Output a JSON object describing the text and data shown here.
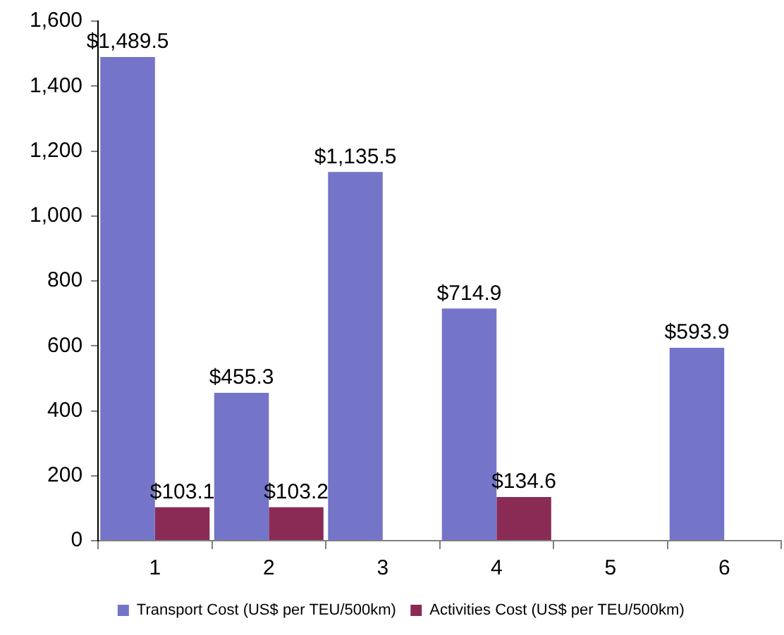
{
  "chart_data": {
    "type": "bar",
    "categories": [
      "1",
      "2",
      "3",
      "4",
      "5",
      "6"
    ],
    "series": [
      {
        "name": "Transport Cost (US$ per TEU/500km)",
        "color": "#7474c8",
        "values": [
          1489.5,
          455.3,
          1135.5,
          714.9,
          null,
          593.9
        ],
        "value_labels": [
          "$1,489.5",
          "$455.3",
          "$1,135.5",
          "$714.9",
          null,
          "$593.9"
        ]
      },
      {
        "name": "Activities Cost (US$ per TEU/500km)",
        "color": "#8a2b56",
        "values": [
          103.1,
          103.2,
          null,
          134.6,
          null,
          null
        ],
        "value_labels": [
          "$103.1",
          "$103.2",
          null,
          "$134.6",
          null,
          null
        ]
      }
    ],
    "ylim": [
      0,
      1600
    ],
    "yticks": [
      0,
      200,
      400,
      600,
      800,
      {
        "value": 1000,
        "label": "1,000"
      },
      {
        "value": 1200,
        "label": "1,200"
      },
      {
        "value": 1400,
        "label": "1,400"
      },
      {
        "value": 1600,
        "label": "1,600"
      }
    ],
    "legend": "bottom",
    "grid": false
  }
}
